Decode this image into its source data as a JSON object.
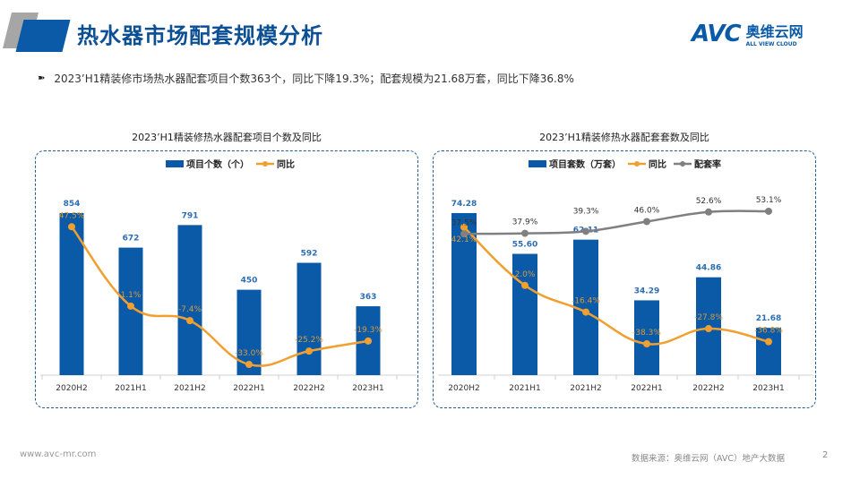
{
  "header": {
    "title": "热水器市场配套规模分析",
    "logo_avc": "AVC",
    "logo_cn": "奥维云网",
    "logo_en": "ALL VIEW CLOUD"
  },
  "summary": "2023’H1精装修市场热水器配套项目个数363个，同比下降19.3%；配套规模为21.68万套，同比下降36.8%",
  "footer": {
    "website": "www.avc-mr.com",
    "source": "数据来源：奥维云网（AVC）地产大数据",
    "page": "2"
  },
  "colors": {
    "bar": "#0b5aa8",
    "yoy": "#f0a030",
    "rate": "#808080",
    "title": "#0b4f95"
  },
  "chart_data": [
    {
      "type": "bar",
      "title": "2023’H1精装修热水器配套项目个数及同比",
      "categories": [
        "2020H2",
        "2021H1",
        "2021H2",
        "2022H1",
        "2022H2",
        "2023H1"
      ],
      "series": [
        {
          "name": "项目个数（个）",
          "type": "bar",
          "values": [
            854,
            672,
            791,
            450,
            592,
            363
          ],
          "labels": [
            "854",
            "672",
            "791",
            "450",
            "592",
            "363"
          ]
        },
        {
          "name": "同比",
          "type": "line",
          "values": [
            47.5,
            1.1,
            -7.4,
            -33.0,
            -25.2,
            -19.3
          ],
          "labels": [
            "47.5%",
            "1.1%",
            "-7.4%",
            "-33.0%",
            "-25.2%",
            "-19.3%"
          ]
        }
      ],
      "legend": "top"
    },
    {
      "type": "bar",
      "title": "2023’H1精装修热水器配套套数及同比",
      "categories": [
        "2020H2",
        "2021H1",
        "2021H2",
        "2022H1",
        "2022H2",
        "2023H1"
      ],
      "series": [
        {
          "name": "项目套数（万套）",
          "type": "bar",
          "values": [
            74.28,
            55.6,
            62.11,
            34.29,
            44.86,
            21.68
          ],
          "labels": [
            "74.28",
            "55.60",
            "62.11",
            "34.29",
            "44.86",
            "21.68"
          ]
        },
        {
          "name": "同比",
          "type": "line",
          "values": [
            42.1,
            2.0,
            -16.4,
            -38.3,
            -27.8,
            -36.8
          ],
          "labels": [
            "42.1%",
            "2.0%",
            "-16.4%",
            "-38.3%",
            "-27.8%",
            "-36.8%"
          ]
        },
        {
          "name": "配套率",
          "type": "line",
          "values": [
            37.5,
            37.9,
            39.3,
            46.0,
            52.6,
            53.1
          ],
          "labels": [
            "37.5%",
            "37.9%",
            "39.3%",
            "46.0%",
            "52.6%",
            "53.1%"
          ]
        }
      ],
      "legend": "top"
    }
  ]
}
